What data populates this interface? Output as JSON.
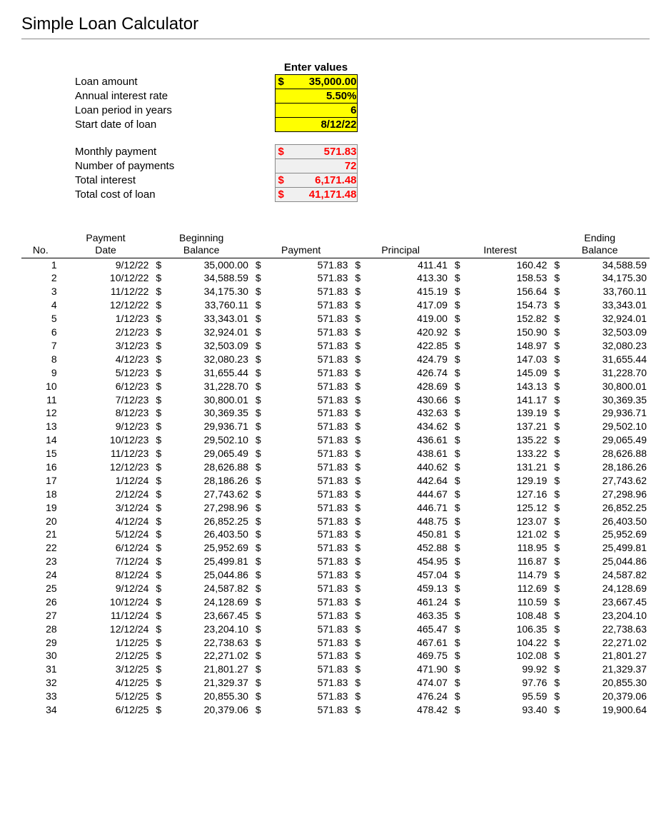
{
  "title": "Simple Loan Calculator",
  "inputs": {
    "header": "Enter values",
    "rows": [
      {
        "label": "Loan amount",
        "value": "35,000.00",
        "prefix": "$ ",
        "style": "yellow"
      },
      {
        "label": "Annual interest rate",
        "value": "5.50%",
        "prefix": "",
        "style": "yellow"
      },
      {
        "label": "Loan period in years",
        "value": "6",
        "prefix": "",
        "style": "yellow"
      },
      {
        "label": "Start date of loan",
        "value": "8/12/22",
        "prefix": "",
        "style": "yellow"
      }
    ],
    "outputs": [
      {
        "label": "Monthly payment",
        "value": "571.83",
        "prefix": "$",
        "style": "gray"
      },
      {
        "label": "Number of payments",
        "value": "72",
        "prefix": "",
        "style": "gray"
      },
      {
        "label": "Total interest",
        "value": "6,171.48",
        "prefix": "$",
        "style": "gray"
      },
      {
        "label": "Total cost of loan",
        "value": "41,171.48",
        "prefix": "$",
        "style": "gray"
      }
    ]
  },
  "schedule": {
    "headers": [
      "No.",
      "Payment\nDate",
      "Beginning\nBalance",
      "Payment",
      "Principal",
      "Interest",
      "Ending\nBalance"
    ],
    "rows": [
      {
        "no": "1",
        "date": "9/12/22",
        "begin": "35,000.00",
        "pay": "571.83",
        "prin": "411.41",
        "int": "160.42",
        "end": "34,588.59"
      },
      {
        "no": "2",
        "date": "10/12/22",
        "begin": "34,588.59",
        "pay": "571.83",
        "prin": "413.30",
        "int": "158.53",
        "end": "34,175.30"
      },
      {
        "no": "3",
        "date": "11/12/22",
        "begin": "34,175.30",
        "pay": "571.83",
        "prin": "415.19",
        "int": "156.64",
        "end": "33,760.11"
      },
      {
        "no": "4",
        "date": "12/12/22",
        "begin": "33,760.11",
        "pay": "571.83",
        "prin": "417.09",
        "int": "154.73",
        "end": "33,343.01"
      },
      {
        "no": "5",
        "date": "1/12/23",
        "begin": "33,343.01",
        "pay": "571.83",
        "prin": "419.00",
        "int": "152.82",
        "end": "32,924.01"
      },
      {
        "no": "6",
        "date": "2/12/23",
        "begin": "32,924.01",
        "pay": "571.83",
        "prin": "420.92",
        "int": "150.90",
        "end": "32,503.09"
      },
      {
        "no": "7",
        "date": "3/12/23",
        "begin": "32,503.09",
        "pay": "571.83",
        "prin": "422.85",
        "int": "148.97",
        "end": "32,080.23"
      },
      {
        "no": "8",
        "date": "4/12/23",
        "begin": "32,080.23",
        "pay": "571.83",
        "prin": "424.79",
        "int": "147.03",
        "end": "31,655.44"
      },
      {
        "no": "9",
        "date": "5/12/23",
        "begin": "31,655.44",
        "pay": "571.83",
        "prin": "426.74",
        "int": "145.09",
        "end": "31,228.70"
      },
      {
        "no": "10",
        "date": "6/12/23",
        "begin": "31,228.70",
        "pay": "571.83",
        "prin": "428.69",
        "int": "143.13",
        "end": "30,800.01"
      },
      {
        "no": "11",
        "date": "7/12/23",
        "begin": "30,800.01",
        "pay": "571.83",
        "prin": "430.66",
        "int": "141.17",
        "end": "30,369.35"
      },
      {
        "no": "12",
        "date": "8/12/23",
        "begin": "30,369.35",
        "pay": "571.83",
        "prin": "432.63",
        "int": "139.19",
        "end": "29,936.71"
      },
      {
        "no": "13",
        "date": "9/12/23",
        "begin": "29,936.71",
        "pay": "571.83",
        "prin": "434.62",
        "int": "137.21",
        "end": "29,502.10"
      },
      {
        "no": "14",
        "date": "10/12/23",
        "begin": "29,502.10",
        "pay": "571.83",
        "prin": "436.61",
        "int": "135.22",
        "end": "29,065.49"
      },
      {
        "no": "15",
        "date": "11/12/23",
        "begin": "29,065.49",
        "pay": "571.83",
        "prin": "438.61",
        "int": "133.22",
        "end": "28,626.88"
      },
      {
        "no": "16",
        "date": "12/12/23",
        "begin": "28,626.88",
        "pay": "571.83",
        "prin": "440.62",
        "int": "131.21",
        "end": "28,186.26"
      },
      {
        "no": "17",
        "date": "1/12/24",
        "begin": "28,186.26",
        "pay": "571.83",
        "prin": "442.64",
        "int": "129.19",
        "end": "27,743.62"
      },
      {
        "no": "18",
        "date": "2/12/24",
        "begin": "27,743.62",
        "pay": "571.83",
        "prin": "444.67",
        "int": "127.16",
        "end": "27,298.96"
      },
      {
        "no": "19",
        "date": "3/12/24",
        "begin": "27,298.96",
        "pay": "571.83",
        "prin": "446.71",
        "int": "125.12",
        "end": "26,852.25"
      },
      {
        "no": "20",
        "date": "4/12/24",
        "begin": "26,852.25",
        "pay": "571.83",
        "prin": "448.75",
        "int": "123.07",
        "end": "26,403.50"
      },
      {
        "no": "21",
        "date": "5/12/24",
        "begin": "26,403.50",
        "pay": "571.83",
        "prin": "450.81",
        "int": "121.02",
        "end": "25,952.69"
      },
      {
        "no": "22",
        "date": "6/12/24",
        "begin": "25,952.69",
        "pay": "571.83",
        "prin": "452.88",
        "int": "118.95",
        "end": "25,499.81"
      },
      {
        "no": "23",
        "date": "7/12/24",
        "begin": "25,499.81",
        "pay": "571.83",
        "prin": "454.95",
        "int": "116.87",
        "end": "25,044.86"
      },
      {
        "no": "24",
        "date": "8/12/24",
        "begin": "25,044.86",
        "pay": "571.83",
        "prin": "457.04",
        "int": "114.79",
        "end": "24,587.82"
      },
      {
        "no": "25",
        "date": "9/12/24",
        "begin": "24,587.82",
        "pay": "571.83",
        "prin": "459.13",
        "int": "112.69",
        "end": "24,128.69"
      },
      {
        "no": "26",
        "date": "10/12/24",
        "begin": "24,128.69",
        "pay": "571.83",
        "prin": "461.24",
        "int": "110.59",
        "end": "23,667.45"
      },
      {
        "no": "27",
        "date": "11/12/24",
        "begin": "23,667.45",
        "pay": "571.83",
        "prin": "463.35",
        "int": "108.48",
        "end": "23,204.10"
      },
      {
        "no": "28",
        "date": "12/12/24",
        "begin": "23,204.10",
        "pay": "571.83",
        "prin": "465.47",
        "int": "106.35",
        "end": "22,738.63"
      },
      {
        "no": "29",
        "date": "1/12/25",
        "begin": "22,738.63",
        "pay": "571.83",
        "prin": "467.61",
        "int": "104.22",
        "end": "22,271.02"
      },
      {
        "no": "30",
        "date": "2/12/25",
        "begin": "22,271.02",
        "pay": "571.83",
        "prin": "469.75",
        "int": "102.08",
        "end": "21,801.27"
      },
      {
        "no": "31",
        "date": "3/12/25",
        "begin": "21,801.27",
        "pay": "571.83",
        "prin": "471.90",
        "int": "99.92",
        "end": "21,329.37"
      },
      {
        "no": "32",
        "date": "4/12/25",
        "begin": "21,329.37",
        "pay": "571.83",
        "prin": "474.07",
        "int": "97.76",
        "end": "20,855.30"
      },
      {
        "no": "33",
        "date": "5/12/25",
        "begin": "20,855.30",
        "pay": "571.83",
        "prin": "476.24",
        "int": "95.59",
        "end": "20,379.06"
      },
      {
        "no": "34",
        "date": "6/12/25",
        "begin": "20,379.06",
        "pay": "571.83",
        "prin": "478.42",
        "int": "93.40",
        "end": "19,900.64"
      }
    ]
  },
  "colors": {
    "highlight_bg": "#ffff00",
    "output_bg": "#f0f0f0",
    "output_text": "#ff0000",
    "border": "#000000"
  }
}
